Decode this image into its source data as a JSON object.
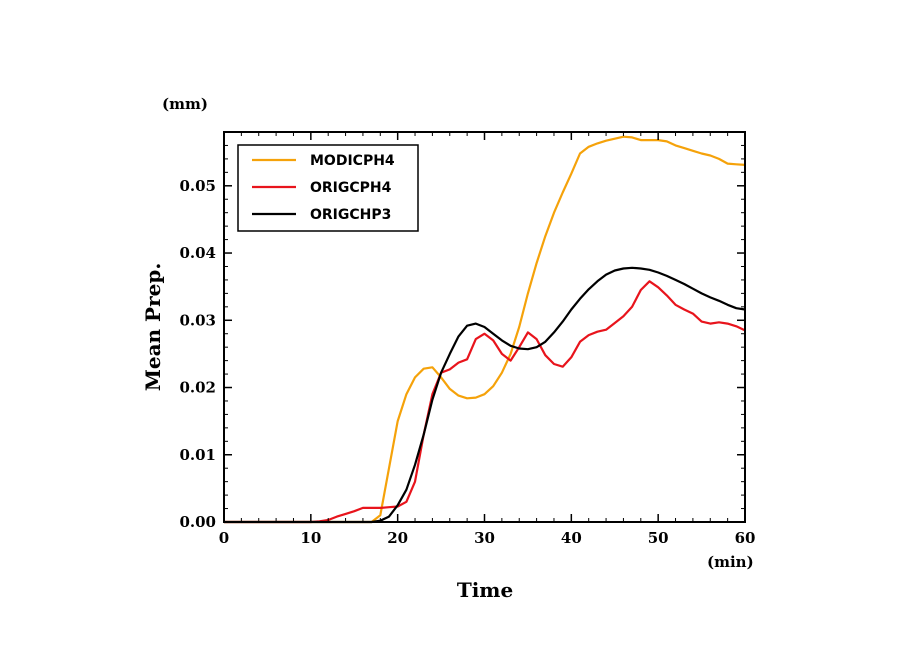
{
  "chart_data": {
    "type": "line",
    "xlabel": "Time",
    "ylabel": "Mean Prep.",
    "x_unit": "(min)",
    "y_unit": "(mm)",
    "xlim": [
      0,
      60
    ],
    "ylim": [
      0,
      0.058
    ],
    "x_ticks": [
      0,
      10,
      20,
      30,
      40,
      50,
      60
    ],
    "x_tick_labels": [
      "0",
      "10",
      "20",
      "30",
      "40",
      "50",
      "60"
    ],
    "y_ticks": [
      0,
      0.01,
      0.02,
      0.03,
      0.04,
      0.05
    ],
    "y_tick_labels": [
      "0.00",
      "0.01",
      "0.02",
      "0.03",
      "0.04",
      "0.05"
    ],
    "grid": false,
    "legend_position": "top-left",
    "series": [
      {
        "name": "MODICPH4",
        "color": "#f5a20a",
        "points": [
          [
            0,
            0
          ],
          [
            10,
            0
          ],
          [
            16,
            0
          ],
          [
            17,
            0
          ],
          [
            18,
            0.001
          ],
          [
            19,
            0.008
          ],
          [
            20,
            0.015
          ],
          [
            21,
            0.019
          ],
          [
            22,
            0.0215
          ],
          [
            23,
            0.0228
          ],
          [
            24,
            0.023
          ],
          [
            25,
            0.0215
          ],
          [
            26,
            0.0198
          ],
          [
            27,
            0.0188
          ],
          [
            28,
            0.0184
          ],
          [
            29,
            0.0185
          ],
          [
            30,
            0.019
          ],
          [
            31,
            0.0202
          ],
          [
            32,
            0.0222
          ],
          [
            33,
            0.025
          ],
          [
            34,
            0.029
          ],
          [
            35,
            0.034
          ],
          [
            36,
            0.0385
          ],
          [
            37,
            0.0425
          ],
          [
            38,
            0.046
          ],
          [
            39,
            0.049
          ],
          [
            40,
            0.0518
          ],
          [
            41,
            0.0548
          ],
          [
            42,
            0.0558
          ],
          [
            43,
            0.0563
          ],
          [
            44,
            0.0567
          ],
          [
            45,
            0.057
          ],
          [
            46,
            0.0573
          ],
          [
            47,
            0.0572
          ],
          [
            48,
            0.0568
          ],
          [
            49,
            0.0568
          ],
          [
            50,
            0.0568
          ],
          [
            51,
            0.0566
          ],
          [
            52,
            0.056
          ],
          [
            53,
            0.0556
          ],
          [
            54,
            0.0552
          ],
          [
            55,
            0.0548
          ],
          [
            56,
            0.0545
          ],
          [
            57,
            0.054
          ],
          [
            58,
            0.0533
          ],
          [
            59,
            0.0532
          ],
          [
            60,
            0.0531
          ]
        ]
      },
      {
        "name": "ORIGCPH4",
        "color": "#e8141c",
        "points": [
          [
            0,
            0
          ],
          [
            10,
            0
          ],
          [
            11,
            0.0001
          ],
          [
            12,
            0.0003
          ],
          [
            13,
            0.0008
          ],
          [
            14,
            0.0012
          ],
          [
            15,
            0.0016
          ],
          [
            16,
            0.0021
          ],
          [
            17,
            0.0021
          ],
          [
            18,
            0.0021
          ],
          [
            19,
            0.0022
          ],
          [
            20,
            0.0023
          ],
          [
            21,
            0.003
          ],
          [
            22,
            0.006
          ],
          [
            23,
            0.013
          ],
          [
            24,
            0.019
          ],
          [
            25,
            0.0222
          ],
          [
            26,
            0.0227
          ],
          [
            27,
            0.0237
          ],
          [
            28,
            0.0242
          ],
          [
            29,
            0.0272
          ],
          [
            30,
            0.028
          ],
          [
            31,
            0.027
          ],
          [
            32,
            0.025
          ],
          [
            33,
            0.024
          ],
          [
            34,
            0.026
          ],
          [
            35,
            0.0282
          ],
          [
            36,
            0.0272
          ],
          [
            37,
            0.0248
          ],
          [
            38,
            0.0235
          ],
          [
            39,
            0.0231
          ],
          [
            40,
            0.0245
          ],
          [
            41,
            0.0268
          ],
          [
            42,
            0.0278
          ],
          [
            43,
            0.0283
          ],
          [
            44,
            0.0286
          ],
          [
            45,
            0.0296
          ],
          [
            46,
            0.0306
          ],
          [
            47,
            0.032
          ],
          [
            48,
            0.0345
          ],
          [
            49,
            0.0358
          ],
          [
            50,
            0.0349
          ],
          [
            51,
            0.0337
          ],
          [
            52,
            0.0323
          ],
          [
            53,
            0.0316
          ],
          [
            54,
            0.031
          ],
          [
            55,
            0.0298
          ],
          [
            56,
            0.0295
          ],
          [
            57,
            0.0297
          ],
          [
            58,
            0.0295
          ],
          [
            59,
            0.0291
          ],
          [
            60,
            0.0285
          ]
        ]
      },
      {
        "name": "ORIGCHP3",
        "color": "#000000",
        "points": [
          [
            0,
            0
          ],
          [
            10,
            0
          ],
          [
            17,
            0
          ],
          [
            18,
            0.0002
          ],
          [
            19,
            0.0008
          ],
          [
            20,
            0.0025
          ],
          [
            21,
            0.0048
          ],
          [
            22,
            0.0085
          ],
          [
            23,
            0.013
          ],
          [
            24,
            0.0182
          ],
          [
            25,
            0.0222
          ],
          [
            26,
            0.025
          ],
          [
            27,
            0.0276
          ],
          [
            28,
            0.0292
          ],
          [
            29,
            0.0295
          ],
          [
            30,
            0.029
          ],
          [
            31,
            0.028
          ],
          [
            32,
            0.027
          ],
          [
            33,
            0.0262
          ],
          [
            34,
            0.0258
          ],
          [
            35,
            0.0257
          ],
          [
            36,
            0.026
          ],
          [
            37,
            0.0268
          ],
          [
            38,
            0.0282
          ],
          [
            39,
            0.0298
          ],
          [
            40,
            0.0316
          ],
          [
            41,
            0.0332
          ],
          [
            42,
            0.0346
          ],
          [
            43,
            0.0358
          ],
          [
            44,
            0.0368
          ],
          [
            45,
            0.0374
          ],
          [
            46,
            0.0377
          ],
          [
            47,
            0.0378
          ],
          [
            48,
            0.0377
          ],
          [
            49,
            0.0375
          ],
          [
            50,
            0.0371
          ],
          [
            51,
            0.0366
          ],
          [
            52,
            0.036
          ],
          [
            53,
            0.0354
          ],
          [
            54,
            0.0347
          ],
          [
            55,
            0.034
          ],
          [
            56,
            0.0334
          ],
          [
            57,
            0.0329
          ],
          [
            58,
            0.0323
          ],
          [
            59,
            0.0318
          ],
          [
            60,
            0.0316
          ]
        ]
      }
    ]
  }
}
